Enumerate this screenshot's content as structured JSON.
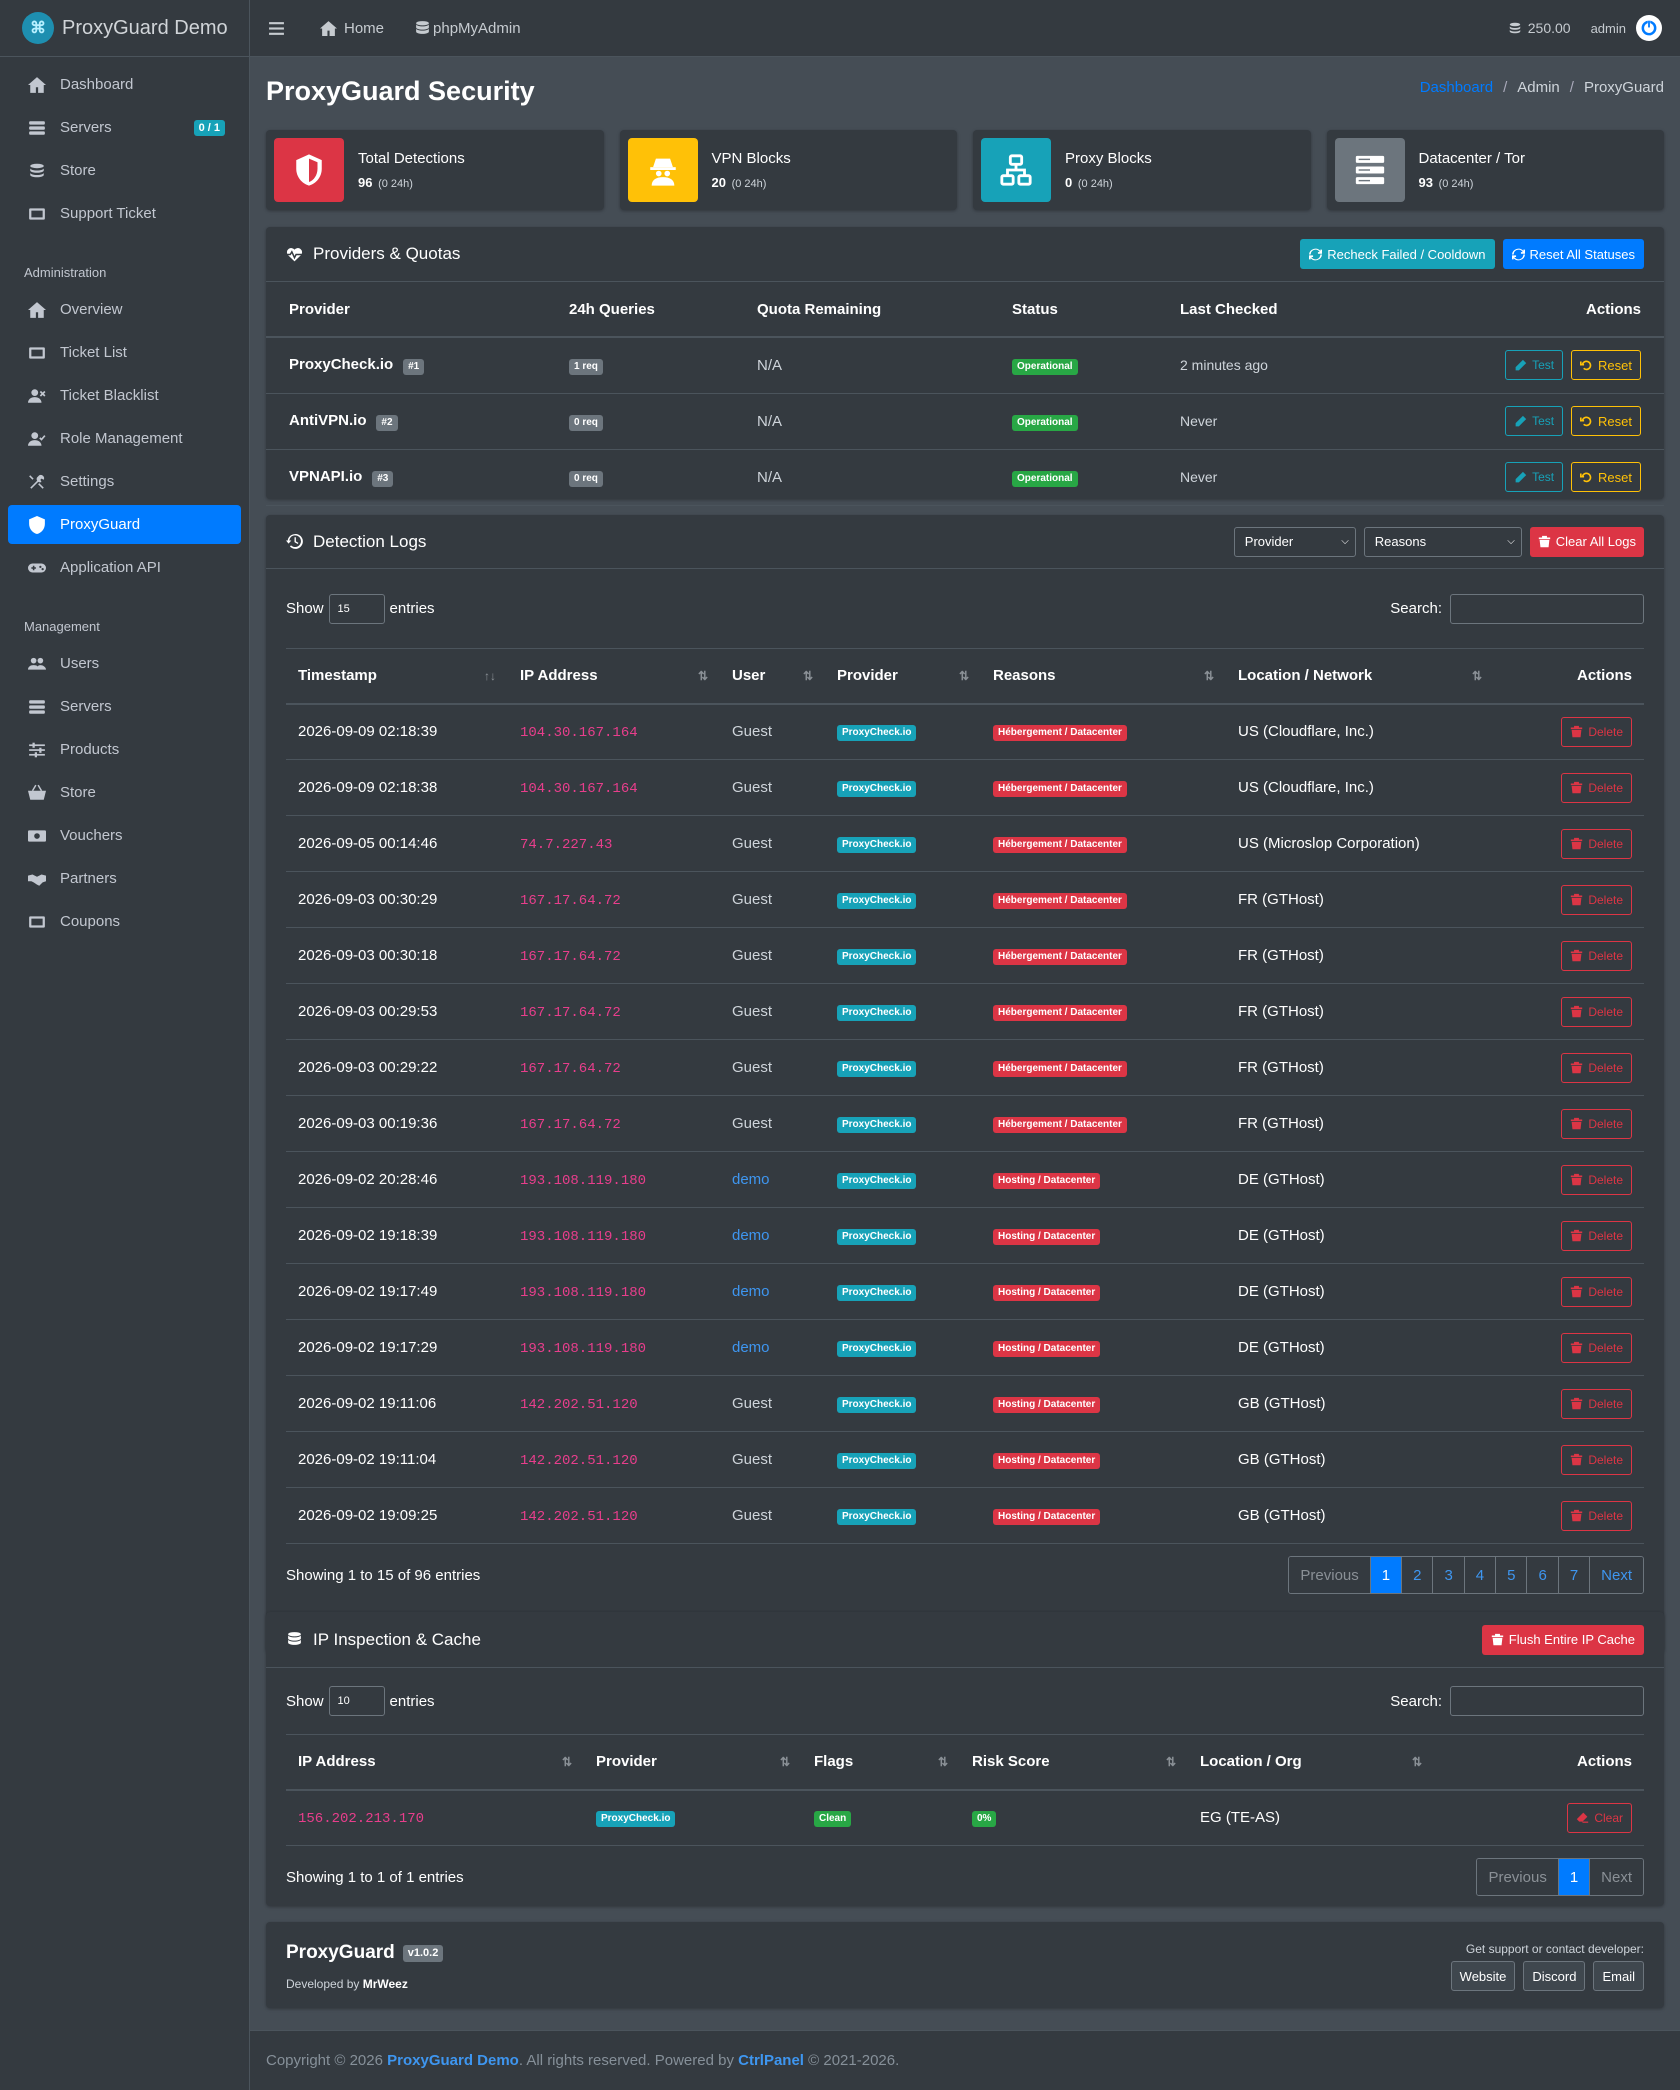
{
  "brand": {
    "name": "ProxyGuard Demo"
  },
  "sidebar": {
    "items": [
      {
        "label": "Dashboard",
        "icon": "home-icon"
      },
      {
        "label": "Servers",
        "icon": "server-icon",
        "badge": "0 / 1"
      },
      {
        "label": "Store",
        "icon": "coins-icon"
      },
      {
        "label": "Support Ticket",
        "icon": "ticket-icon"
      }
    ],
    "admin_header": "Administration",
    "admin_items": [
      {
        "label": "Overview",
        "icon": "home-icon"
      },
      {
        "label": "Ticket List",
        "icon": "ticket-icon"
      },
      {
        "label": "Ticket Blacklist",
        "icon": "user-times-icon"
      },
      {
        "label": "Role Management",
        "icon": "user-check-icon"
      },
      {
        "label": "Settings",
        "icon": "tools-icon"
      },
      {
        "label": "ProxyGuard",
        "icon": "shield-icon"
      },
      {
        "label": "Application API",
        "icon": "gamepad-icon"
      }
    ],
    "management_header": "Management",
    "management_items": [
      {
        "label": "Users",
        "icon": "users-icon"
      },
      {
        "label": "Servers",
        "icon": "server-icon"
      },
      {
        "label": "Products",
        "icon": "sliders-icon"
      },
      {
        "label": "Store",
        "icon": "basket-icon"
      },
      {
        "label": "Vouchers",
        "icon": "money-icon"
      },
      {
        "label": "Partners",
        "icon": "handshake-icon"
      },
      {
        "label": "Coupons",
        "icon": "ticket-icon"
      }
    ]
  },
  "topbar": {
    "home": "Home",
    "phpmyadmin": "phpMyAdmin",
    "credits": "250.00",
    "user": "admin"
  },
  "page": {
    "title": "ProxyGuard Security"
  },
  "breadcrumb": {
    "items": [
      "Dashboard",
      "Admin",
      "ProxyGuard"
    ]
  },
  "stats": [
    {
      "title": "Total Detections",
      "value": "96",
      "sub": "(0 24h)",
      "color": "#dc3545",
      "icon": "shield-icon"
    },
    {
      "title": "VPN Blocks",
      "value": "20",
      "sub": "(0 24h)",
      "color": "#ffc107",
      "icon": "user-secret-icon"
    },
    {
      "title": "Proxy Blocks",
      "value": "0",
      "sub": "(0 24h)",
      "color": "#17a2b8",
      "icon": "network-icon"
    },
    {
      "title": "Datacenter / Tor",
      "value": "93",
      "sub": "(0 24h)",
      "color": "#6c757d",
      "icon": "server-icon"
    }
  ],
  "providers": {
    "title": "Providers & Quotas",
    "recheck_label": "Recheck Failed / Cooldown",
    "reset_all_label": "Reset All Statuses",
    "columns": [
      "Provider",
      "24h Queries",
      "Quota Remaining",
      "Status",
      "Last Checked",
      "Actions"
    ],
    "rows": [
      {
        "name": "ProxyCheck.io",
        "num": "#1",
        "queries": "1 req",
        "quota": "N/A",
        "status": "Operational",
        "checked": "2 minutes ago"
      },
      {
        "name": "AntiVPN.io",
        "num": "#2",
        "queries": "0 req",
        "quota": "N/A",
        "status": "Operational",
        "checked": "Never"
      },
      {
        "name": "VPNAPI.io",
        "num": "#3",
        "queries": "0 req",
        "quota": "N/A",
        "status": "Operational",
        "checked": "Never"
      }
    ],
    "test_label": "Test",
    "reset_label": "Reset"
  },
  "logs": {
    "title": "Detection Logs",
    "provider_select": "Provider",
    "reasons_select": "Reasons",
    "clear_label": "Clear All Logs",
    "show_label": "Show",
    "entries_value": "15",
    "entries_label": "entries",
    "search_label": "Search:",
    "columns": [
      "Timestamp",
      "IP Address",
      "User",
      "Provider",
      "Reasons",
      "Location / Network",
      "Actions"
    ],
    "rows": [
      {
        "ts": "2026-09-09 02:18:39",
        "ip": "104.30.167.164",
        "user": "Guest",
        "provider": "ProxyCheck.io",
        "reason": "Hébergement / Datacenter",
        "loc": "US (Cloudflare, Inc.)"
      },
      {
        "ts": "2026-09-09 02:18:38",
        "ip": "104.30.167.164",
        "user": "Guest",
        "provider": "ProxyCheck.io",
        "reason": "Hébergement / Datacenter",
        "loc": "US (Cloudflare, Inc.)"
      },
      {
        "ts": "2026-09-05 00:14:46",
        "ip": "74.7.227.43",
        "user": "Guest",
        "provider": "ProxyCheck.io",
        "reason": "Hébergement / Datacenter",
        "loc": "US (Microslop Corporation)"
      },
      {
        "ts": "2026-09-03 00:30:29",
        "ip": "167.17.64.72",
        "user": "Guest",
        "provider": "ProxyCheck.io",
        "reason": "Hébergement / Datacenter",
        "loc": "FR (GTHost)"
      },
      {
        "ts": "2026-09-03 00:30:18",
        "ip": "167.17.64.72",
        "user": "Guest",
        "provider": "ProxyCheck.io",
        "reason": "Hébergement / Datacenter",
        "loc": "FR (GTHost)"
      },
      {
        "ts": "2026-09-03 00:29:53",
        "ip": "167.17.64.72",
        "user": "Guest",
        "provider": "ProxyCheck.io",
        "reason": "Hébergement / Datacenter",
        "loc": "FR (GTHost)"
      },
      {
        "ts": "2026-09-03 00:29:22",
        "ip": "167.17.64.72",
        "user": "Guest",
        "provider": "ProxyCheck.io",
        "reason": "Hébergement / Datacenter",
        "loc": "FR (GTHost)"
      },
      {
        "ts": "2026-09-03 00:19:36",
        "ip": "167.17.64.72",
        "user": "Guest",
        "provider": "ProxyCheck.io",
        "reason": "Hébergement / Datacenter",
        "loc": "FR (GTHost)"
      },
      {
        "ts": "2026-09-02 20:28:46",
        "ip": "193.108.119.180",
        "user": "demo",
        "provider": "ProxyCheck.io",
        "reason": "Hosting / Datacenter",
        "loc": "DE (GTHost)"
      },
      {
        "ts": "2026-09-02 19:18:39",
        "ip": "193.108.119.180",
        "user": "demo",
        "provider": "ProxyCheck.io",
        "reason": "Hosting / Datacenter",
        "loc": "DE (GTHost)"
      },
      {
        "ts": "2026-09-02 19:17:49",
        "ip": "193.108.119.180",
        "user": "demo",
        "provider": "ProxyCheck.io",
        "reason": "Hosting / Datacenter",
        "loc": "DE (GTHost)"
      },
      {
        "ts": "2026-09-02 19:17:29",
        "ip": "193.108.119.180",
        "user": "demo",
        "provider": "ProxyCheck.io",
        "reason": "Hosting / Datacenter",
        "loc": "DE (GTHost)"
      },
      {
        "ts": "2026-09-02 19:11:06",
        "ip": "142.202.51.120",
        "user": "Guest",
        "provider": "ProxyCheck.io",
        "reason": "Hosting / Datacenter",
        "loc": "GB (GTHost)"
      },
      {
        "ts": "2026-09-02 19:11:04",
        "ip": "142.202.51.120",
        "user": "Guest",
        "provider": "ProxyCheck.io",
        "reason": "Hosting / Datacenter",
        "loc": "GB (GTHost)"
      },
      {
        "ts": "2026-09-02 19:09:25",
        "ip": "142.202.51.120",
        "user": "Guest",
        "provider": "ProxyCheck.io",
        "reason": "Hosting / Datacenter",
        "loc": "GB (GTHost)"
      }
    ],
    "delete_label": "Delete",
    "info": "Showing 1 to 15 of 96 entries",
    "pages": [
      "Previous",
      "1",
      "2",
      "3",
      "4",
      "5",
      "6",
      "7",
      "Next"
    ]
  },
  "cache": {
    "title": "IP Inspection & Cache",
    "flush_label": "Flush Entire IP Cache",
    "show_label": "Show",
    "entries_value": "10",
    "entries_label": "entries",
    "search_label": "Search:",
    "columns": [
      "IP Address",
      "Provider",
      "Flags",
      "Risk Score",
      "Location / Org",
      "Actions"
    ],
    "rows": [
      {
        "ip": "156.202.213.170",
        "provider": "ProxyCheck.io",
        "flag": "Clean",
        "risk": "0%",
        "loc": "EG (TE-AS)"
      }
    ],
    "clear_label": "Clear",
    "info": "Showing 1 to 1 of 1 entries",
    "pages": [
      "Previous",
      "1",
      "Next"
    ]
  },
  "plugin_footer": {
    "name": "ProxyGuard",
    "version": "v1.0.2",
    "dev_prefix": "Developed by",
    "dev": "MrWeez",
    "support": "Get support or contact developer:",
    "buttons": [
      "Website",
      "Discord",
      "Email"
    ]
  },
  "footer": {
    "pre": "Copyright © 2026",
    "site": "ProxyGuard Demo",
    "mid": ". All rights reserved. Powered by",
    "powered": "CtrlPanel",
    "post": "© 2021-2026."
  }
}
